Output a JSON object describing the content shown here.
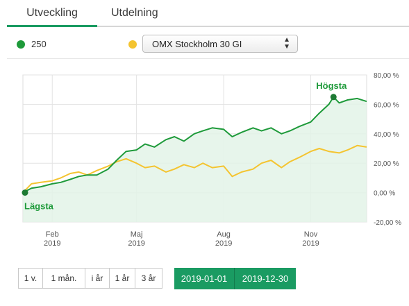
{
  "tabs": {
    "active": "Utveckling",
    "other": "Utdelning"
  },
  "legend": {
    "series_label": "250",
    "compare_select": "OMX Stockholm 30 GI",
    "colors": {
      "series": "#1e9a3a",
      "compare": "#f4c430"
    }
  },
  "chart_data": {
    "type": "line",
    "title": "",
    "xlabel": "",
    "ylabel": "",
    "y_axis": "right",
    "ylim": [
      -20,
      80
    ],
    "yticks": [
      "80,00 %",
      "60,00 %",
      "40,00 %",
      "20,00 %",
      "0,00 %",
      "-20,00 %"
    ],
    "ytick_values": [
      80,
      60,
      40,
      20,
      0,
      -20
    ],
    "xticks": [
      {
        "label": "Feb",
        "year": "2019",
        "x": "2019-02-01"
      },
      {
        "label": "Maj",
        "year": "2019",
        "x": "2019-05-01"
      },
      {
        "label": "Aug",
        "year": "2019",
        "x": "2019-08-01"
      },
      {
        "label": "Nov",
        "year": "2019",
        "x": "2019-11-01"
      }
    ],
    "x_range": [
      "2019-01-01",
      "2019-12-30"
    ],
    "grid": true,
    "annotations": {
      "high_label": "Högsta",
      "high": {
        "x": "2019-11-25",
        "y": 65
      },
      "low_label": "Lägsta",
      "low": {
        "x": "2019-01-01",
        "y": 0
      }
    },
    "series": [
      {
        "color": "#1e9a3a",
        "points": [
          [
            "2019-01-01",
            0
          ],
          [
            "2019-01-10",
            3
          ],
          [
            "2019-01-20",
            4
          ],
          [
            "2019-02-01",
            6
          ],
          [
            "2019-02-10",
            7
          ],
          [
            "2019-02-20",
            9
          ],
          [
            "2019-03-01",
            11
          ],
          [
            "2019-03-10",
            12
          ],
          [
            "2019-03-20",
            12
          ],
          [
            "2019-04-01",
            16
          ],
          [
            "2019-04-10",
            22
          ],
          [
            "2019-04-20",
            28
          ],
          [
            "2019-05-01",
            29
          ],
          [
            "2019-05-10",
            33
          ],
          [
            "2019-05-20",
            31
          ],
          [
            "2019-06-01",
            36
          ],
          [
            "2019-06-10",
            38
          ],
          [
            "2019-06-20",
            35
          ],
          [
            "2019-07-01",
            40
          ],
          [
            "2019-07-10",
            42
          ],
          [
            "2019-07-20",
            44
          ],
          [
            "2019-08-01",
            43
          ],
          [
            "2019-08-10",
            38
          ],
          [
            "2019-08-20",
            41
          ],
          [
            "2019-09-01",
            44
          ],
          [
            "2019-09-10",
            42
          ],
          [
            "2019-09-20",
            44
          ],
          [
            "2019-10-01",
            40
          ],
          [
            "2019-10-10",
            42
          ],
          [
            "2019-10-20",
            45
          ],
          [
            "2019-11-01",
            48
          ],
          [
            "2019-11-10",
            54
          ],
          [
            "2019-11-20",
            60
          ],
          [
            "2019-11-25",
            65
          ],
          [
            "2019-12-01",
            61
          ],
          [
            "2019-12-10",
            63
          ],
          [
            "2019-12-20",
            64
          ],
          [
            "2019-12-30",
            62
          ]
        ]
      },
      {
        "color": "#f4c430",
        "points": [
          [
            "2019-01-01",
            0
          ],
          [
            "2019-01-10",
            6
          ],
          [
            "2019-01-20",
            7
          ],
          [
            "2019-02-01",
            8
          ],
          [
            "2019-02-10",
            10
          ],
          [
            "2019-02-20",
            13
          ],
          [
            "2019-03-01",
            14
          ],
          [
            "2019-03-10",
            12
          ],
          [
            "2019-03-20",
            15
          ],
          [
            "2019-04-01",
            18
          ],
          [
            "2019-04-10",
            21
          ],
          [
            "2019-04-20",
            23
          ],
          [
            "2019-05-01",
            20
          ],
          [
            "2019-05-10",
            17
          ],
          [
            "2019-05-20",
            18
          ],
          [
            "2019-06-01",
            14
          ],
          [
            "2019-06-10",
            16
          ],
          [
            "2019-06-20",
            19
          ],
          [
            "2019-07-01",
            17
          ],
          [
            "2019-07-10",
            20
          ],
          [
            "2019-07-20",
            17
          ],
          [
            "2019-08-01",
            18
          ],
          [
            "2019-08-10",
            11
          ],
          [
            "2019-08-20",
            14
          ],
          [
            "2019-09-01",
            16
          ],
          [
            "2019-09-10",
            20
          ],
          [
            "2019-09-20",
            22
          ],
          [
            "2019-10-01",
            17
          ],
          [
            "2019-10-10",
            21
          ],
          [
            "2019-10-20",
            24
          ],
          [
            "2019-11-01",
            28
          ],
          [
            "2019-11-10",
            30
          ],
          [
            "2019-11-20",
            28
          ],
          [
            "2019-12-01",
            27
          ],
          [
            "2019-12-10",
            29
          ],
          [
            "2019-12-20",
            32
          ],
          [
            "2019-12-30",
            31
          ]
        ]
      }
    ]
  },
  "range_buttons": [
    "1 v.",
    "1 mån.",
    "i år",
    "1 år",
    "3 år"
  ],
  "date_range": {
    "from": "2019-01-01",
    "to": "2019-12-30"
  }
}
